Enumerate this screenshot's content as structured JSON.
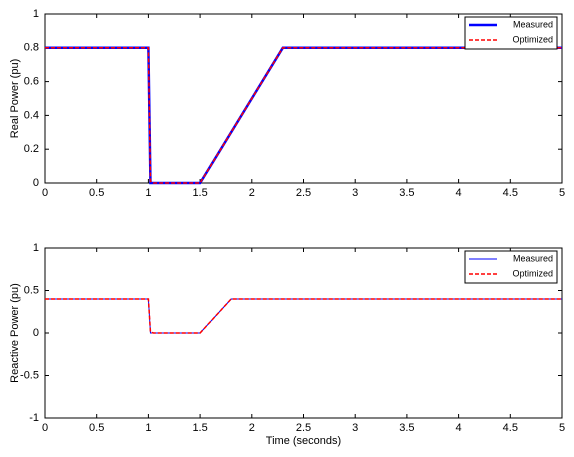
{
  "chart_data": [
    {
      "type": "line",
      "ylabel": "Real Power (pu)",
      "x": [
        0,
        1,
        1.02,
        1.05,
        1.5,
        2.3,
        5
      ],
      "series": [
        {
          "name": "Measured",
          "color": "#0000ff",
          "linestyle": "solid",
          "linewidth": 2.5,
          "values": [
            0.8,
            0.8,
            0,
            0,
            0,
            0.8,
            0.8
          ]
        },
        {
          "name": "Optimized",
          "color": "#ff0000",
          "linestyle": "dashed",
          "linewidth": 1.5,
          "values": [
            0.8,
            0.8,
            0.01,
            0,
            0,
            0.8,
            0.8
          ]
        }
      ],
      "xlim": [
        0,
        5
      ],
      "xticks": [
        0,
        0.5,
        1,
        1.5,
        2,
        2.5,
        3,
        3.5,
        4,
        4.5,
        5
      ],
      "ylim": [
        0,
        1
      ],
      "yticks": [
        0,
        0.2,
        0.4,
        0.6,
        0.8,
        1
      ],
      "legend": "upper right"
    },
    {
      "type": "line",
      "ylabel": "Reactive Power (pu)",
      "xlabel": "Time (seconds)",
      "x": [
        0,
        1,
        1.02,
        1.05,
        1.5,
        1.8,
        5
      ],
      "series": [
        {
          "name": "Measured",
          "color": "#0000ff",
          "linestyle": "solid",
          "linewidth": 1,
          "values": [
            0.4,
            0.4,
            0,
            0,
            0,
            0.4,
            0.4
          ]
        },
        {
          "name": "Optimized",
          "color": "#ff0000",
          "linestyle": "dashed",
          "linewidth": 1.5,
          "values": [
            0.4,
            0.4,
            0.01,
            0,
            0,
            0.4,
            0.4
          ]
        }
      ],
      "xlim": [
        0,
        5
      ],
      "xticks": [
        0,
        0.5,
        1,
        1.5,
        2,
        2.5,
        3,
        3.5,
        4,
        4.5,
        5
      ],
      "ylim": [
        -1,
        1
      ],
      "yticks": [
        -1,
        -0.5,
        0,
        0.5,
        1
      ],
      "legend": "upper right"
    }
  ]
}
